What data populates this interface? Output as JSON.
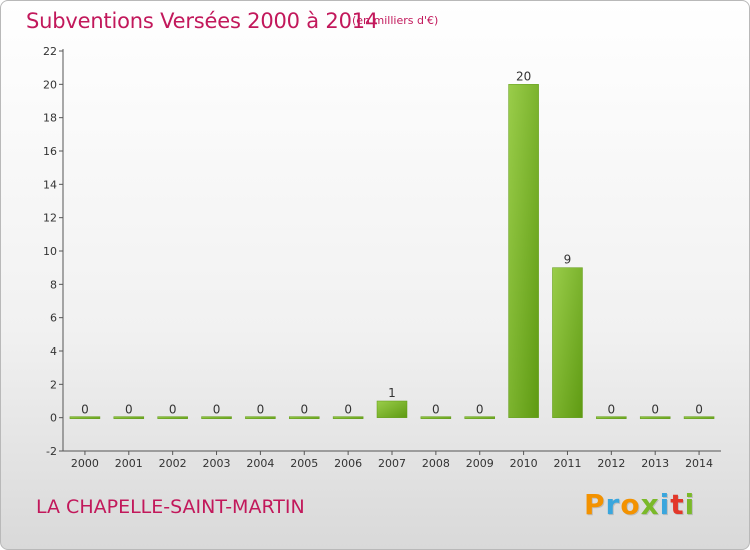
{
  "header": {
    "title": "Subventions Versées 2000 à 2014",
    "unit": "(en milliers d'€)"
  },
  "footer": {
    "commune": "LA CHAPELLE-SAINT-MARTIN",
    "logo": "Proxiti"
  },
  "colors": {
    "title": "#c2185b",
    "bar_light": "#9acd4a",
    "bar_dark": "#5e9a12",
    "logo_letters": [
      "#f39200",
      "#3aa6dd",
      "#f39200",
      "#7ab929",
      "#3aa6dd",
      "#e2382a",
      "#7ab929"
    ]
  },
  "chart_data": {
    "type": "bar",
    "title": "Subventions Versées 2000 à 2014",
    "subtitle": "(en milliers d'€)",
    "categories": [
      "2000",
      "2001",
      "2002",
      "2003",
      "2004",
      "2005",
      "2006",
      "2007",
      "2008",
      "2009",
      "2010",
      "2011",
      "2012",
      "2013",
      "2014"
    ],
    "values": [
      0,
      0,
      0,
      0,
      0,
      0,
      0,
      1,
      0,
      0,
      20,
      9,
      0,
      0,
      0
    ],
    "data_labels": [
      "0",
      "0",
      "0",
      "0",
      "0",
      "0",
      "0",
      "1",
      "0",
      "0",
      "20",
      "9",
      "0",
      "0",
      "0"
    ],
    "ylim": [
      -2,
      22
    ],
    "yticks": [
      -2,
      0,
      2,
      4,
      6,
      8,
      10,
      12,
      14,
      16,
      18,
      20,
      22
    ],
    "grid": false,
    "legend": "none"
  }
}
